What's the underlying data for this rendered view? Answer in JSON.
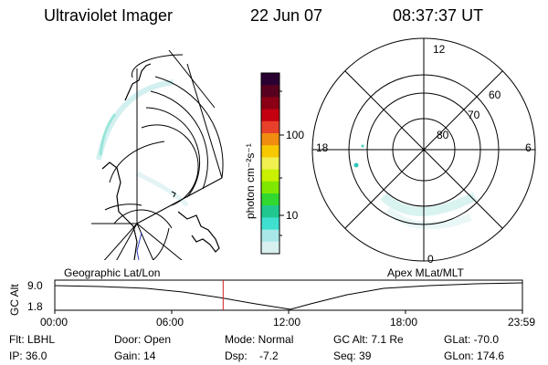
{
  "header": {
    "instrument": "Ultraviolet Imager",
    "date": "22 Jun 07",
    "time": "08:37:37 UT"
  },
  "colorbar": {
    "label": "photon cm⁻²s⁻¹",
    "tick_100": "100",
    "tick_10": "10",
    "colors": [
      "#2a0033",
      "#58001f",
      "#8a0015",
      "#c40010",
      "#e8402a",
      "#f08c10",
      "#f8c800",
      "#f0f050",
      "#c8f000",
      "#80e800",
      "#30d830",
      "#20c890",
      "#40e0d0",
      "#a8e8e8",
      "#d8f0f0"
    ]
  },
  "polar_plot": {
    "label_12": "12",
    "label_18": "18",
    "label_6": "6",
    "label_0": "0",
    "lat_60": "60",
    "lat_70": "70",
    "lat_80": "80"
  },
  "altitude_panel": {
    "left_caption": "Geographic Lat/Lon",
    "right_caption": "Apex MLat/MLT",
    "y_axis_label": "GC Alt",
    "y_max": "9.0",
    "y_min": "1.8",
    "x_ticks": [
      "00:00",
      "06:00",
      "12:00",
      "18:00",
      "23:59"
    ],
    "current_time_fraction": 0.36
  },
  "status": {
    "flt": "Flt: LBHL",
    "ip": "IP: 36.0",
    "door": "Door: Open",
    "gain": "Gain: 14",
    "mode": "Mode: Normal",
    "dsp": "Dsp:    -7.2",
    "gcalt": "GC Alt: 7.1 Re",
    "seq": "Seq: 39",
    "glat": "GLat: -70.0",
    "glon": "GLon: 174.6"
  }
}
